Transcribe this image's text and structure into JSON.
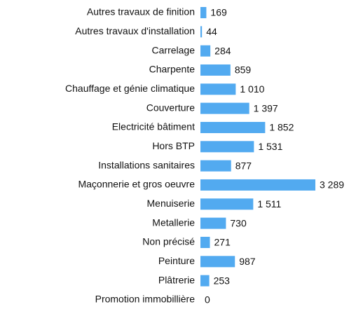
{
  "chart_data": {
    "type": "bar",
    "orientation": "horizontal",
    "color": "#52aaf0",
    "categories": [
      "Autres travaux de finition",
      "Autres travaux d'installation",
      "Carrelage",
      "Charpente",
      "Chauffage et génie climatique",
      "Couverture",
      "Electricité bâtiment",
      "Hors BTP",
      "Installations sanitaires",
      "Maçonnerie et gros oeuvre",
      "Menuiserie",
      "Metallerie",
      "Non précisé",
      "Peinture",
      "Plâtrerie",
      "Promotion immobillière"
    ],
    "values": [
      169,
      44,
      284,
      859,
      1010,
      1397,
      1852,
      1531,
      877,
      3289,
      1511,
      730,
      271,
      987,
      253,
      0
    ],
    "value_labels": [
      "169",
      "44",
      "284",
      "859",
      "1 010",
      "1 397",
      "1 852",
      "1 531",
      "877",
      "3 289",
      "1 511",
      "730",
      "271",
      "987",
      "253",
      "0"
    ]
  }
}
